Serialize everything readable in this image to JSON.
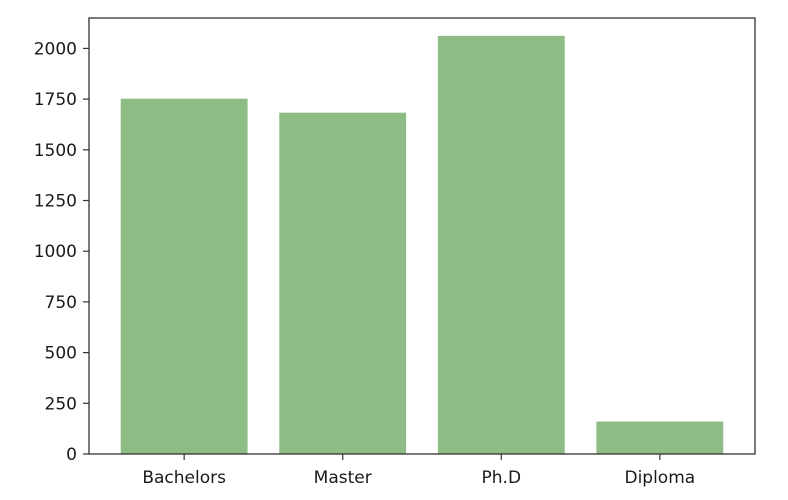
{
  "chart_data": {
    "type": "bar",
    "categories": [
      "Bachelors",
      "Master",
      "Ph.D",
      "Diploma"
    ],
    "values": [
      1752,
      1683,
      2062,
      160
    ],
    "ylim": [
      0,
      2150
    ],
    "yticks": [
      0,
      250,
      500,
      750,
      1000,
      1250,
      1500,
      1750,
      2000
    ],
    "ytick_labels": [
      "0",
      "250",
      "500",
      "750",
      "1000",
      "1250",
      "1500",
      "1750",
      "2000"
    ],
    "title": "",
    "xlabel": "",
    "ylabel": "",
    "bar_color": "#8dbc85",
    "axis_color": "#333333",
    "grid": false,
    "legend": "none"
  }
}
